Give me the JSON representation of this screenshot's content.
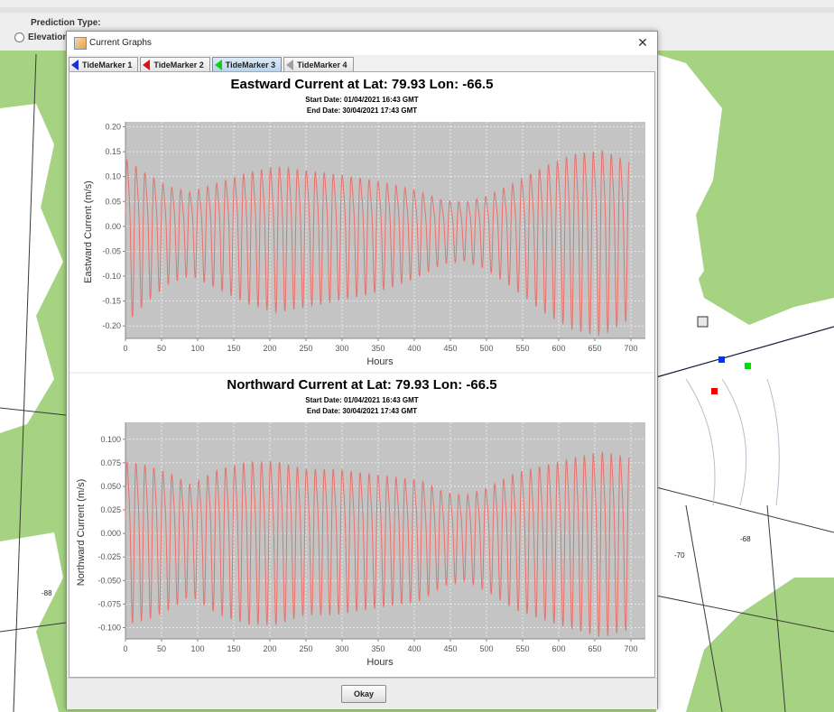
{
  "app": {
    "prediction_type_label": "Prediction Type:",
    "radio_label": "Elevation"
  },
  "map": {
    "labels": [
      "-70",
      "-68",
      "-88"
    ],
    "colors": {
      "land": "#a5d381",
      "water": "#ffffff",
      "line": "#3a3a3a"
    },
    "markers": [
      {
        "color": "#0033ff",
        "name": "blue-marker"
      },
      {
        "color": "#00dd00",
        "name": "green-marker"
      },
      {
        "color": "#ee0000",
        "name": "red-marker"
      },
      {
        "color": "#666666",
        "name": "gray-marker"
      }
    ]
  },
  "dialog": {
    "title": "Current Graphs",
    "tabs": [
      {
        "label": "TideMarker 1",
        "color": "#1a2fd6"
      },
      {
        "label": "TideMarker 2",
        "color": "#e01010"
      },
      {
        "label": "TideMarker 3",
        "color": "#10d010",
        "active": true
      },
      {
        "label": "TideMarker 4",
        "color": "#a0a0a0"
      }
    ],
    "okay_label": "Okay"
  },
  "chart_data": [
    {
      "type": "line",
      "title": "Eastward Current at Lat: 79.93 Lon: -66.5",
      "subtitle_start": "Start Date: 01/04/2021 16:43 GMT",
      "subtitle_end": "End Date: 30/04/2021 17:43 GMT",
      "xlabel": "Hours",
      "ylabel": "Eastward Current (m/s)",
      "xlim": [
        0,
        720
      ],
      "ylim": [
        -0.225,
        0.21
      ],
      "xticks": [
        0,
        50,
        100,
        150,
        200,
        250,
        300,
        350,
        400,
        450,
        500,
        550,
        600,
        650,
        700
      ],
      "yticks": [
        0.2,
        0.15,
        0.1,
        0.05,
        0.0,
        -0.05,
        -0.1,
        -0.15,
        -0.2
      ],
      "ytick_labels": [
        "0.20",
        "0.15",
        "0.10",
        "0.05",
        "0.00",
        "-0.05",
        "-0.10",
        "-0.15",
        "-0.20"
      ],
      "grid": true,
      "series_color": "#e8716b",
      "plot_bg": "#c4c4c4",
      "series": [
        {
          "x_range": [
            0,
            698
          ],
          "period_hours": 12.42,
          "envelope": [
            [
              0,
              0.17
            ],
            [
              30,
              0.13
            ],
            [
              60,
              0.1
            ],
            [
              90,
              0.085
            ],
            [
              130,
              0.11
            ],
            [
              170,
              0.135
            ],
            [
              210,
              0.15
            ],
            [
              250,
              0.14
            ],
            [
              290,
              0.13
            ],
            [
              330,
              0.12
            ],
            [
              370,
              0.105
            ],
            [
              410,
              0.085
            ],
            [
              440,
              0.065
            ],
            [
              470,
              0.06
            ],
            [
              500,
              0.075
            ],
            [
              540,
              0.11
            ],
            [
              580,
              0.15
            ],
            [
              620,
              0.18
            ],
            [
              660,
              0.19
            ],
            [
              698,
              0.16
            ]
          ],
          "amplitude_min": -0.21
        }
      ]
    },
    {
      "type": "line",
      "title": "Northward Current at Lat: 79.93 Lon: -66.5",
      "subtitle_start": "Start Date: 01/04/2021 16:43 GMT",
      "subtitle_end": "End Date: 30/04/2021 17:43 GMT",
      "xlabel": "Hours",
      "ylabel": "Northward Current (m/s)",
      "xlim": [
        0,
        720
      ],
      "ylim": [
        -0.112,
        0.118
      ],
      "xticks": [
        0,
        50,
        100,
        150,
        200,
        250,
        300,
        350,
        400,
        450,
        500,
        550,
        600,
        650,
        700
      ],
      "yticks": [
        0.1,
        0.075,
        0.05,
        0.025,
        0.0,
        -0.025,
        -0.05,
        -0.075,
        -0.1
      ],
      "ytick_labels": [
        "0.100",
        "0.075",
        "0.050",
        "0.025",
        "0.000",
        "-0.025",
        "-0.050",
        "-0.075",
        "-0.100"
      ],
      "grid": true,
      "series_color": "#e8716b",
      "plot_bg": "#c4c4c4",
      "series": [
        {
          "x_range": [
            0,
            698
          ],
          "period_hours": 12.42,
          "envelope": [
            [
              0,
              0.095
            ],
            [
              30,
              0.09
            ],
            [
              60,
              0.08
            ],
            [
              90,
              0.065
            ],
            [
              130,
              0.085
            ],
            [
              170,
              0.095
            ],
            [
              210,
              0.095
            ],
            [
              250,
              0.085
            ],
            [
              290,
              0.085
            ],
            [
              330,
              0.08
            ],
            [
              370,
              0.075
            ],
            [
              410,
              0.07
            ],
            [
              440,
              0.055
            ],
            [
              470,
              0.05
            ],
            [
              500,
              0.06
            ],
            [
              540,
              0.08
            ],
            [
              580,
              0.09
            ],
            [
              620,
              0.1
            ],
            [
              660,
              0.108
            ],
            [
              698,
              0.1
            ]
          ],
          "amplitude_min": -0.105
        }
      ]
    }
  ]
}
